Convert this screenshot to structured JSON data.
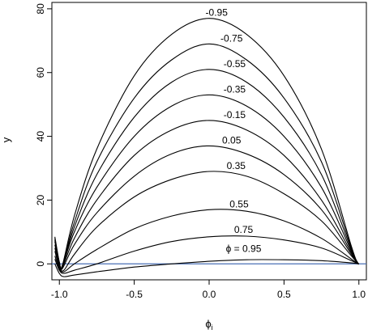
{
  "chart_data": {
    "type": "line",
    "title": "",
    "xlabel": "ϕ",
    "xlabel_subscript": "i",
    "ylabel": "y",
    "xlim": [
      -1.05,
      1.05
    ],
    "ylim": [
      -5,
      82
    ],
    "xticks": [
      -1.0,
      -0.5,
      0.0,
      0.5,
      1.0
    ],
    "xtick_labels": [
      "-1.0",
      "-0.5",
      "0.0",
      "0.5",
      "1.0"
    ],
    "yticks": [
      0,
      20,
      40,
      60,
      80
    ],
    "ytick_labels": [
      "0",
      "20",
      "40",
      "60",
      "80"
    ],
    "reference_line": {
      "y": 0,
      "color": "#4a6fb5"
    },
    "grid": false,
    "legend": "none",
    "series": [
      {
        "label": "-0.95",
        "label_at": [
          0.05,
          77
        ],
        "points": [
          [
            -1.03,
            8.5
          ],
          [
            -1.0,
            0.6
          ],
          [
            -0.98,
            -0.5
          ],
          [
            -0.9,
            15
          ],
          [
            -0.75,
            36
          ],
          [
            -0.5,
            59
          ],
          [
            -0.25,
            72
          ],
          [
            0.0,
            77
          ],
          [
            0.25,
            72
          ],
          [
            0.5,
            59
          ],
          [
            0.75,
            36
          ],
          [
            0.95,
            5.5
          ],
          [
            0.99,
            0.5
          ],
          [
            1.0,
            0
          ]
        ]
      },
      {
        "label": "-0.75",
        "label_at": [
          0.15,
          69
        ],
        "points": [
          [
            -1.03,
            8
          ],
          [
            -1.0,
            0.5
          ],
          [
            -0.98,
            -0.5
          ],
          [
            -0.9,
            13
          ],
          [
            -0.75,
            32
          ],
          [
            -0.5,
            52
          ],
          [
            -0.25,
            64
          ],
          [
            0.0,
            69
          ],
          [
            0.25,
            64
          ],
          [
            0.5,
            52
          ],
          [
            0.75,
            32
          ],
          [
            0.95,
            5
          ],
          [
            0.99,
            0.5
          ],
          [
            1.0,
            0
          ]
        ]
      },
      {
        "label": "-0.55",
        "label_at": [
          0.17,
          61
        ],
        "points": [
          [
            -1.03,
            7.5
          ],
          [
            -1.0,
            0.4
          ],
          [
            -0.98,
            -0.6
          ],
          [
            -0.9,
            11.5
          ],
          [
            -0.75,
            28
          ],
          [
            -0.5,
            46
          ],
          [
            -0.25,
            57
          ],
          [
            0.0,
            61
          ],
          [
            0.25,
            57
          ],
          [
            0.5,
            46
          ],
          [
            0.75,
            28
          ],
          [
            0.95,
            4.5
          ],
          [
            0.99,
            0.5
          ],
          [
            1.0,
            0
          ]
        ]
      },
      {
        "label": "-0.35",
        "label_at": [
          0.17,
          53
        ],
        "points": [
          [
            -1.03,
            7
          ],
          [
            -1.0,
            0.3
          ],
          [
            -0.98,
            -0.7
          ],
          [
            -0.9,
            10
          ],
          [
            -0.75,
            24
          ],
          [
            -0.5,
            40
          ],
          [
            -0.25,
            49.5
          ],
          [
            0.0,
            53
          ],
          [
            0.25,
            49.5
          ],
          [
            0.5,
            40
          ],
          [
            0.75,
            24
          ],
          [
            0.95,
            4
          ],
          [
            0.99,
            0.4
          ],
          [
            1.0,
            0
          ]
        ]
      },
      {
        "label": "-0.15",
        "label_at": [
          0.17,
          45
        ],
        "points": [
          [
            -1.03,
            6
          ],
          [
            -1.0,
            0
          ],
          [
            -0.98,
            -1
          ],
          [
            -0.9,
            8
          ],
          [
            -0.75,
            20
          ],
          [
            -0.5,
            34
          ],
          [
            -0.25,
            42
          ],
          [
            0.0,
            45
          ],
          [
            0.25,
            42
          ],
          [
            0.5,
            34
          ],
          [
            0.75,
            20
          ],
          [
            0.95,
            3.5
          ],
          [
            0.99,
            0.4
          ],
          [
            1.0,
            0
          ]
        ]
      },
      {
        "label": "0.05",
        "label_at": [
          0.15,
          37
        ],
        "points": [
          [
            -1.03,
            5
          ],
          [
            -1.0,
            -0.5
          ],
          [
            -0.98,
            -1.5
          ],
          [
            -0.9,
            6
          ],
          [
            -0.75,
            16
          ],
          [
            -0.5,
            27.5
          ],
          [
            -0.25,
            34.5
          ],
          [
            0.0,
            37
          ],
          [
            0.25,
            34.5
          ],
          [
            0.5,
            28
          ],
          [
            0.75,
            17
          ],
          [
            0.95,
            3
          ],
          [
            0.99,
            0.3
          ],
          [
            1.0,
            0
          ]
        ]
      },
      {
        "label": "0.35",
        "label_at": [
          0.18,
          29
        ],
        "points": [
          [
            -1.03,
            4
          ],
          [
            -1.0,
            -1
          ],
          [
            -0.97,
            -2
          ],
          [
            -0.9,
            3
          ],
          [
            -0.75,
            11.5
          ],
          [
            -0.5,
            21
          ],
          [
            -0.25,
            26.5
          ],
          [
            0.0,
            29
          ],
          [
            0.25,
            27.5
          ],
          [
            0.5,
            22
          ],
          [
            0.75,
            13.5
          ],
          [
            0.95,
            2.5
          ],
          [
            0.99,
            0.3
          ],
          [
            1.0,
            0
          ]
        ]
      },
      {
        "label": "0.55",
        "label_at": [
          0.2,
          17
        ],
        "points": [
          [
            -1.03,
            2.5
          ],
          [
            -1.0,
            -1.5
          ],
          [
            -0.97,
            -2.5
          ],
          [
            -0.9,
            0
          ],
          [
            -0.75,
            4.5
          ],
          [
            -0.5,
            11
          ],
          [
            -0.25,
            15
          ],
          [
            0.0,
            17
          ],
          [
            0.25,
            16.5
          ],
          [
            0.5,
            13.5
          ],
          [
            0.75,
            8
          ],
          [
            0.95,
            1.5
          ],
          [
            0.99,
            0.2
          ],
          [
            1.0,
            0
          ]
        ]
      },
      {
        "label": "0.75",
        "label_at": [
          0.23,
          9
        ],
        "points": [
          [
            -1.03,
            1.5
          ],
          [
            -1.0,
            -2
          ],
          [
            -0.97,
            -3
          ],
          [
            -0.9,
            -2
          ],
          [
            -0.75,
            0
          ],
          [
            -0.5,
            4
          ],
          [
            -0.25,
            7
          ],
          [
            0.0,
            8.5
          ],
          [
            0.25,
            8.7
          ],
          [
            0.5,
            7.5
          ],
          [
            0.75,
            5
          ],
          [
            0.95,
            1
          ],
          [
            0.99,
            0.1
          ],
          [
            1.0,
            0
          ]
        ]
      },
      {
        "label": "ϕ = 0.95",
        "label_at": [
          0.23,
          3
        ],
        "points": [
          [
            -1.03,
            0
          ],
          [
            -1.0,
            -3
          ],
          [
            -0.97,
            -4
          ],
          [
            -0.9,
            -3.5
          ],
          [
            -0.75,
            -2.5
          ],
          [
            -0.5,
            -1
          ],
          [
            -0.25,
            0
          ],
          [
            0.0,
            0.8
          ],
          [
            0.25,
            1.3
          ],
          [
            0.5,
            1.3
          ],
          [
            0.75,
            1
          ],
          [
            0.95,
            0.3
          ],
          [
            1.0,
            0
          ]
        ]
      }
    ]
  }
}
